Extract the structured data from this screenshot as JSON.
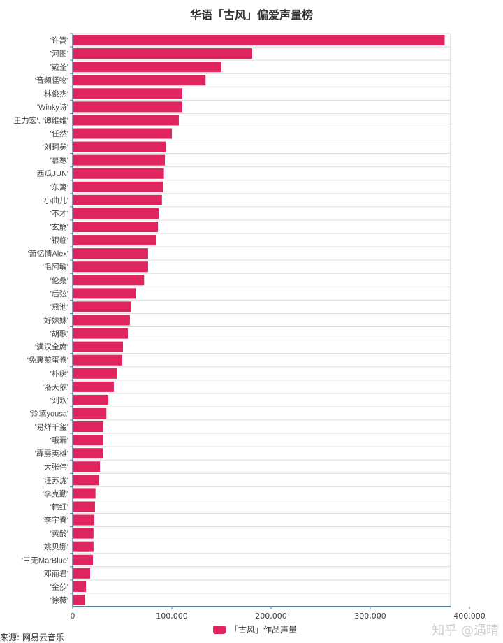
{
  "chart_data": {
    "type": "bar",
    "orientation": "horizontal",
    "title": "华语「古风」偏爱声量榜",
    "categories": [
      "'许嵩'",
      "'河图'",
      "'戴荃'",
      "'音频怪物'",
      "'林俊杰'",
      "'Winky诗'",
      "'王力宏', '谭维维'",
      "'任然'",
      "'刘珂矣'",
      "'慕寒'",
      "'西瓜JUN'",
      "'东篱'",
      "'小曲儿'",
      "'不才'",
      "'玄觞'",
      "'银临'",
      "'萧忆情Alex'",
      "'毛阿敏'",
      "'伦桑'",
      "'后弦'",
      "'燕池'",
      "'好妹妹'",
      "'胡歌'",
      "'满汉全席'",
      "'免裹煎蛋卷'",
      "'朴树'",
      "'洛天依'",
      "'刘欢'",
      "'泠鸢yousa'",
      "'易烊千玺'",
      "'哦漏'",
      "'霹雳英雄'",
      "'大张伟'",
      "'汪苏泷'",
      "'李克勤'",
      "'韩红'",
      "'李宇春'",
      "'黄龄'",
      "'姚贝娜'",
      "'三无MarBlue'",
      "'邓丽君'",
      "'金莎'",
      "'徐薇'"
    ],
    "series": [
      {
        "name": "「古风」作品声量",
        "color": "#e0245e",
        "values": [
          375000,
          181000,
          150000,
          134000,
          110500,
          110500,
          107000,
          100000,
          93700,
          93000,
          92000,
          91000,
          90000,
          86600,
          86000,
          84500,
          76000,
          76000,
          72000,
          63400,
          59000,
          57700,
          55600,
          50700,
          50000,
          45000,
          41500,
          36000,
          34000,
          31000,
          31000,
          30300,
          27500,
          26800,
          23000,
          22500,
          21800,
          21000,
          21000,
          20400,
          17600,
          13400,
          12700
        ]
      }
    ],
    "xticks": [
      "0",
      "100,000",
      "200,000",
      "300,000",
      "400,000"
    ],
    "xlim": [
      0,
      381000
    ],
    "legend": "bottom"
  },
  "source": "来源: 网易云音乐",
  "watermark": "知乎 @遇晴"
}
